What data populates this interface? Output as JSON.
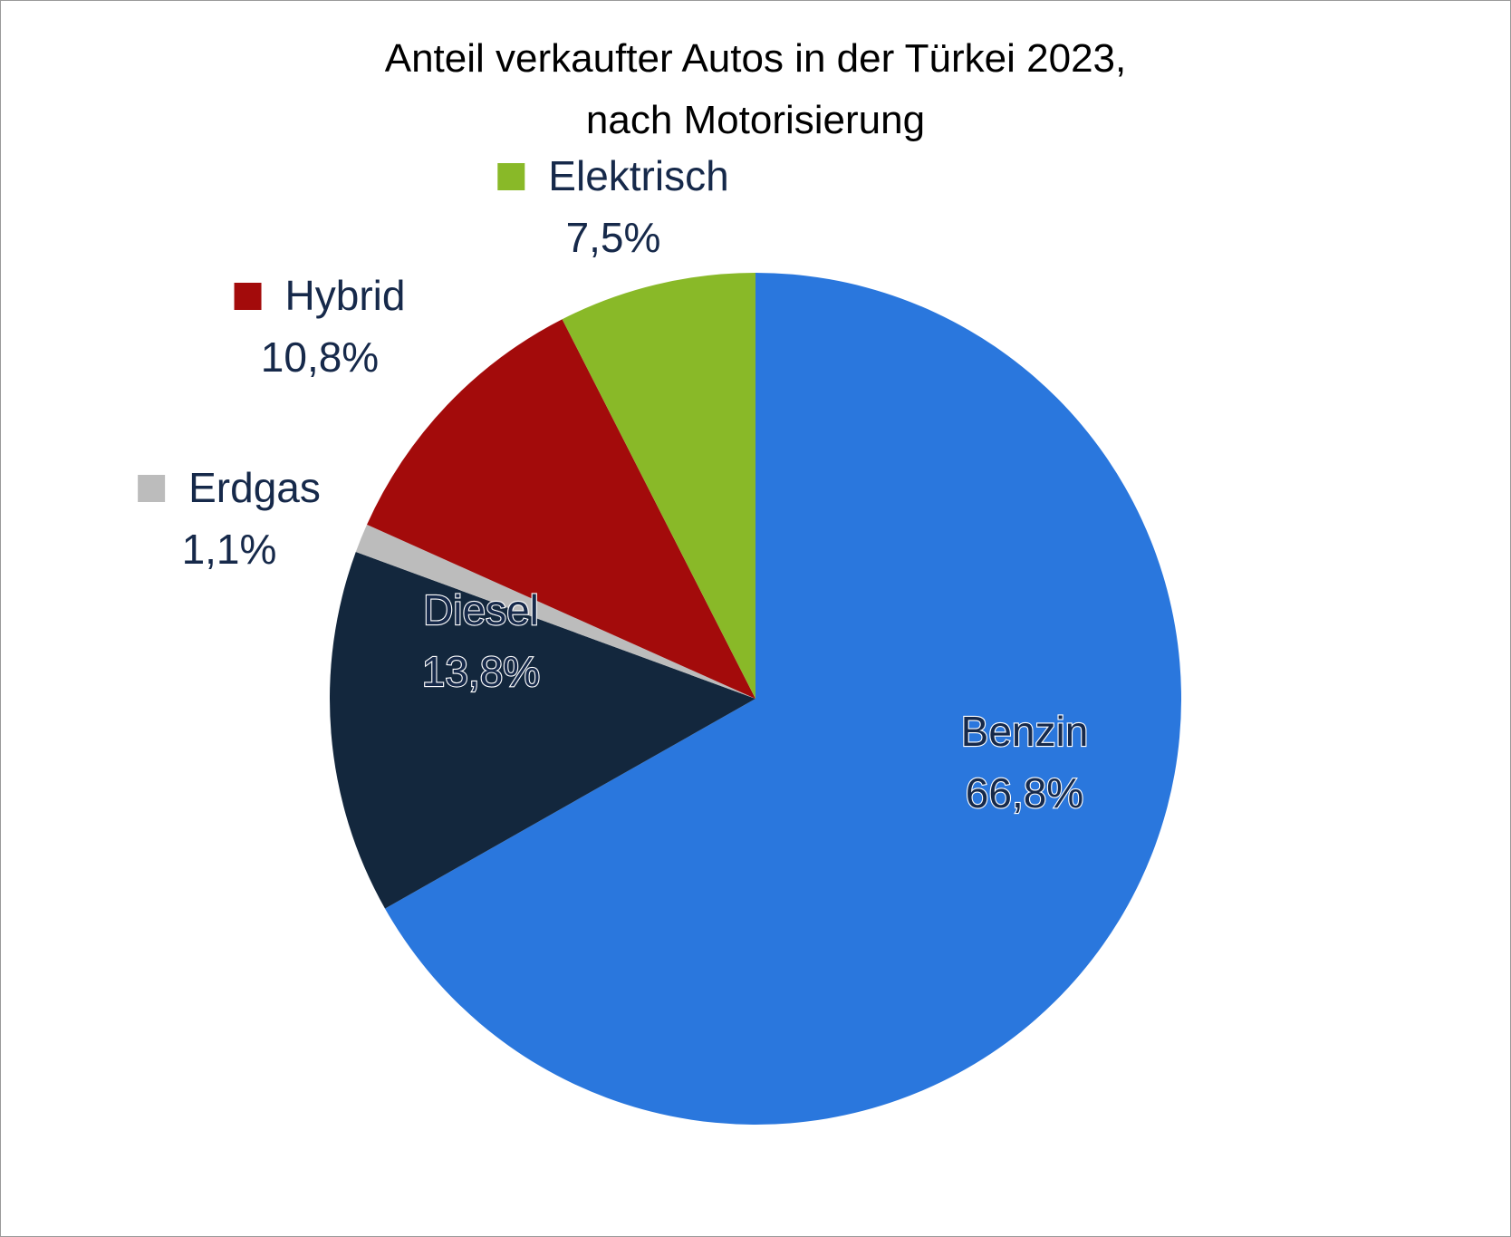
{
  "chart_data": {
    "type": "pie",
    "title": [
      "Anteil verkaufter Autos in der Türkei 2023,",
      "nach Motorisierung"
    ],
    "legend": "on-chart labels with colour markers",
    "slices": [
      {
        "label": "Benzin",
        "value": 66.8,
        "display": "66,8%",
        "color": "#2a77dd",
        "label_style": "inside"
      },
      {
        "label": "Diesel",
        "value": 13.8,
        "display": "13,8%",
        "color": "#13273d",
        "label_style": "inside"
      },
      {
        "label": "Erdgas",
        "value": 1.1,
        "display": "1,1%",
        "color": "#bcbcbc",
        "label_style": "outside"
      },
      {
        "label": "Hybrid",
        "value": 10.8,
        "display": "10,8%",
        "color": "#a30b0b",
        "label_style": "outside"
      },
      {
        "label": "Elektrisch",
        "value": 7.5,
        "display": "7,5%",
        "color": "#89b928",
        "label_style": "outside"
      }
    ]
  }
}
